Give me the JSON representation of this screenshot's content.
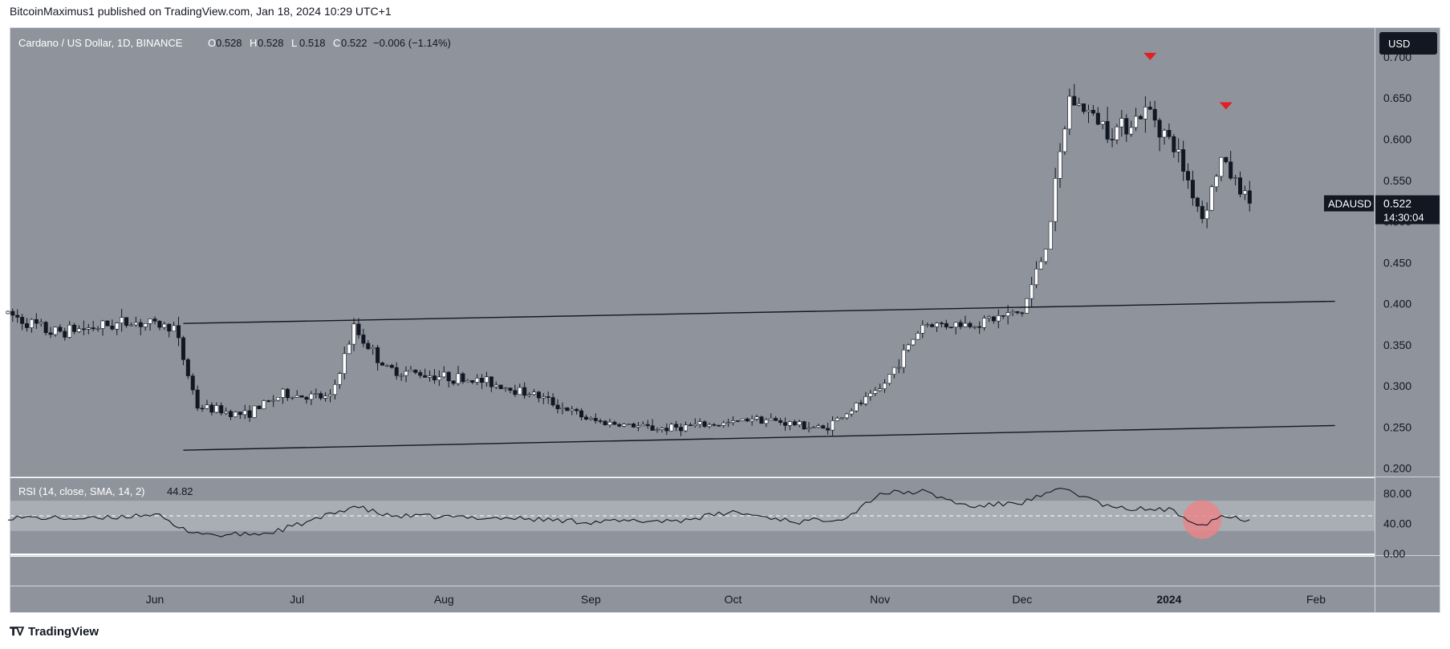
{
  "publisher_line": "BitcoinMaximus1 published on TradingView.com, Jan 18, 2024 10:29 UTC+1",
  "footer_brand": "TradingView",
  "legend": {
    "symbol": "Cardano / US Dollar, 1D, BINANCE",
    "o_label": "O",
    "o": "0.528",
    "h_label": "H",
    "h": "0.528",
    "l_label": "L",
    "l": "0.518",
    "c_label": "C",
    "c": "0.522",
    "change": "−0.006 (−1.14%)"
  },
  "currency_badge": "USD",
  "price_tag": {
    "ticker": "ADAUSD",
    "price": "0.522",
    "countdown": "14:30:04"
  },
  "rsi_legend": {
    "label": "RSI (14, close, SMA, 14, 2)",
    "value": "44.82"
  },
  "colors": {
    "pane_bg": "#8f939c",
    "rsi_band": "#a9adb4",
    "candle_up": "#ffffff",
    "candle_down": "#131722",
    "marker_red": "#e31e24",
    "circle_red": "#e8868a"
  },
  "chart_data": [
    {
      "type": "candlestick",
      "title": "Cardano / US Dollar, 1D, BINANCE",
      "x_ticks": [
        "Jun",
        "Jul",
        "Aug",
        "Sep",
        "Oct",
        "Nov",
        "Dec",
        "2024",
        "Feb"
      ],
      "y_ticks": [
        "0.700",
        "0.650",
        "0.600",
        "0.550",
        "0.500",
        "0.450",
        "0.400",
        "0.350",
        "0.300",
        "0.250",
        "0.200"
      ],
      "ylim": [
        0.19,
        0.735
      ],
      "price_path": [
        [
          "2023-05-01",
          0.388
        ],
        [
          "2023-05-10",
          0.365
        ],
        [
          "2023-05-20",
          0.372
        ],
        [
          "2023-05-27",
          0.378
        ],
        [
          "2023-06-05",
          0.372
        ],
        [
          "2023-06-10",
          0.275
        ],
        [
          "2023-06-20",
          0.265
        ],
        [
          "2023-06-28",
          0.29
        ],
        [
          "2023-07-08",
          0.285
        ],
        [
          "2023-07-13",
          0.37
        ],
        [
          "2023-07-20",
          0.32
        ],
        [
          "2023-08-10",
          0.305
        ],
        [
          "2023-08-20",
          0.29
        ],
        [
          "2023-09-01",
          0.258
        ],
        [
          "2023-09-15",
          0.248
        ],
        [
          "2023-10-01",
          0.255
        ],
        [
          "2023-10-05",
          0.262
        ],
        [
          "2023-10-20",
          0.248
        ],
        [
          "2023-11-01",
          0.295
        ],
        [
          "2023-11-10",
          0.375
        ],
        [
          "2023-11-20",
          0.375
        ],
        [
          "2023-12-01",
          0.39
        ],
        [
          "2023-12-06",
          0.47
        ],
        [
          "2023-12-11",
          0.65
        ],
        [
          "2023-12-20",
          0.61
        ],
        [
          "2023-12-28",
          0.635
        ],
        [
          "2024-01-03",
          0.58
        ],
        [
          "2024-01-08",
          0.505
        ],
        [
          "2024-01-12",
          0.575
        ],
        [
          "2024-01-18",
          0.522
        ]
      ],
      "trendlines": [
        {
          "from": [
            "2023-06-07",
            0.376
          ],
          "to": [
            "2024-02-05",
            0.403
          ]
        },
        {
          "from": [
            "2023-06-07",
            0.222
          ],
          "to": [
            "2024-02-05",
            0.252
          ]
        }
      ],
      "markers": [
        {
          "shape": "triangle-down",
          "at": [
            "2023-12-28",
            0.7
          ]
        },
        {
          "shape": "triangle-down",
          "at": [
            "2024-01-13",
            0.64
          ]
        }
      ],
      "last_price": 0.522
    },
    {
      "type": "line",
      "title": "RSI (14, close, SMA, 14, 2)",
      "y_ticks": [
        "80.00",
        "40.00",
        "0.00"
      ],
      "ylim": [
        0,
        100
      ],
      "band": [
        30,
        70
      ],
      "midline": 50,
      "x": [
        "2023-05-01",
        "2023-05-20",
        "2023-06-01",
        "2023-06-06",
        "2023-06-14",
        "2023-06-25",
        "2023-07-05",
        "2023-07-13",
        "2023-07-20",
        "2023-08-15",
        "2023-09-01",
        "2023-09-20",
        "2023-10-01",
        "2023-10-15",
        "2023-10-25",
        "2023-11-01",
        "2023-11-10",
        "2023-11-20",
        "2023-12-01",
        "2023-12-10",
        "2023-12-20",
        "2024-01-01",
        "2024-01-08",
        "2024-01-12",
        "2024-01-18"
      ],
      "values": [
        48,
        46,
        53,
        33,
        24,
        27,
        45,
        63,
        50,
        47,
        42,
        44,
        55,
        42,
        48,
        80,
        82,
        62,
        68,
        86,
        60,
        58,
        38,
        50,
        44.82
      ],
      "last_value": 44.82,
      "highlight_circle_at": [
        "2024-01-08",
        45
      ]
    }
  ]
}
